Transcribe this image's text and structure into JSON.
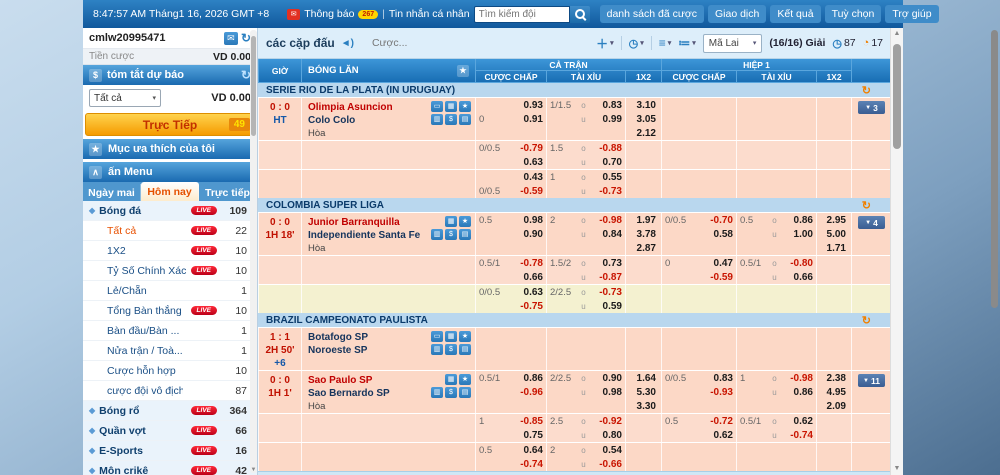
{
  "topbar": {
    "clock": "8:47:57 AM Tháng1 16, 2026 GMT +8",
    "notice_label": "Thông báo",
    "notice_badge": "267",
    "separator": "|",
    "messages_label": "Tin nhắn cá nhân",
    "search_placeholder": "Tìm kiếm đội",
    "nav_buttons": [
      "danh sách đã cược",
      "Giao dịch",
      "Kết quả",
      "Tuỳ chọn",
      "Trợ giúp"
    ]
  },
  "sidebar": {
    "username": "cmlw20995471",
    "stake_label": "Tiền cược",
    "stake_value": "VD 0.00",
    "forecast_title": "tóm tắt dự báo",
    "filter_value": "Tất cả",
    "forecast_value": "VD 0.00",
    "live_button_label": "Trực Tiếp",
    "live_button_count": "49",
    "favorites_label": "Mục ưa thích của tôi",
    "hide_menu_label": "ấn Menu",
    "tabs": [
      {
        "label": "Ngày mai",
        "active": false
      },
      {
        "label": "Hôm nay",
        "active": true
      },
      {
        "label": "Trực tiếp",
        "active": false
      }
    ],
    "items": [
      {
        "label": "Bóng đá",
        "type": "sport",
        "live": true,
        "count": "109"
      },
      {
        "label": "Tất cả",
        "type": "sub",
        "hl": true,
        "live": true,
        "count": "22"
      },
      {
        "label": "1X2",
        "type": "sub",
        "live": true,
        "count": "10"
      },
      {
        "label": "Tỷ Số Chính Xác",
        "type": "sub",
        "live": true,
        "count": "10"
      },
      {
        "label": "Lẻ/Chẵn",
        "type": "sub",
        "live": false,
        "count": "1"
      },
      {
        "label": "Tổng Bàn thắng",
        "type": "sub",
        "live": true,
        "count": "10"
      },
      {
        "label": "Bàn đầu/Bàn ...",
        "type": "sub",
        "live": false,
        "count": "1"
      },
      {
        "label": "Nửa trận / Toà...",
        "type": "sub",
        "live": false,
        "count": "1"
      },
      {
        "label": "Cược hỗn hợp",
        "type": "sub",
        "live": false,
        "count": "10"
      },
      {
        "label": "cược đội vô địch",
        "type": "sub",
        "live": false,
        "count": "87"
      },
      {
        "label": "Bóng rổ",
        "type": "sport",
        "live": true,
        "count": "364"
      },
      {
        "label": "Quần vợt",
        "type": "sport",
        "live": true,
        "count": "66"
      },
      {
        "label": "E-Sports",
        "type": "sport",
        "live": true,
        "count": "16"
      },
      {
        "label": "Môn crikê",
        "type": "sport",
        "live": true,
        "count": "42"
      }
    ]
  },
  "toolbar": {
    "title": "các cặp đấu",
    "bet_label": "Cược...",
    "lang_value": "Mã Lai",
    "league_count": "(16/16) Giải",
    "timer_blue": "87",
    "timer_orange": "17"
  },
  "icon_glyphs": {
    "tv-icon": "▭",
    "stats-icon": "▦",
    "favorite-star-icon": "★",
    "chart-icon": "▥",
    "cashout-icon": "$",
    "score-icon": "▤"
  },
  "colors": {
    "accent_blue": "#1a6ab0",
    "salmon_row": "#fcd8c6",
    "yellow_row": "#f4f1d0",
    "negative_odds": "#c81400",
    "live_red": "#cc0020",
    "orange_button": "#f59b00"
  },
  "table": {
    "col_time": "GIỜ",
    "col_teams": "BÓNG LĂN",
    "group_full": "CẢ TRẬN",
    "group_half": "HIỆP 1",
    "col_hdp": "CƯỢC CHẤP",
    "col_ou": "TÀI XỈU",
    "col_1x2": "1X2",
    "leagues": [
      {
        "name": "SERIE RIO DE LA PLATA (IN URUGUAY)",
        "matches": [
          {
            "time_lines": [
              {
                "text": "0 : 0",
                "color": "red"
              },
              {
                "text": "HT",
                "color": "blue"
              }
            ],
            "teams": [
              {
                "name": "Olimpia Asuncion",
                "color": "red"
              },
              {
                "name": "Colo Colo",
                "color": "dark"
              }
            ],
            "draw_label": "Hòa",
            "icons_top": [
              "tv-icon",
              "stats-icon",
              "favorite-star-icon"
            ],
            "icons_bottom": [
              "chart-icon",
              "cashout-icon",
              "score-icon"
            ],
            "more_count": "3",
            "blocks": [
              {
                "tone": "a",
                "rows": [
                  {
                    "fh": "0.93",
                    "fo_l": "1/1.5",
                    "fo_m": "o",
                    "fo": "0.83",
                    "fx": "3.10"
                  },
                  {
                    "fh_l": "0",
                    "fh": "0.91",
                    "fo_m": "u",
                    "fo": "0.99",
                    "fx": "3.05"
                  },
                  {
                    "fx": "2.12"
                  }
                ]
              },
              {
                "tone": "b",
                "rows": [
                  {
                    "fh_l": "0/0.5",
                    "fh": "-0.79",
                    "fo_l": "1.5",
                    "fo_m": "o",
                    "fo": "-0.88"
                  },
                  {
                    "fh": "0.63",
                    "fo_m": "u",
                    "fo": "0.70"
                  }
                ]
              },
              {
                "tone": "a",
                "rows": [
                  {
                    "fh": "0.43",
                    "fo_l": "1",
                    "fo_m": "o",
                    "fo": "0.55"
                  },
                  {
                    "fh_l": "0/0.5",
                    "fh": "-0.59",
                    "fo_m": "u",
                    "fo": "-0.73"
                  }
                ]
              }
            ]
          }
        ]
      },
      {
        "name": "COLOMBIA SUPER LIGA",
        "matches": [
          {
            "time_lines": [
              {
                "text": "0 : 0",
                "color": "red"
              },
              {
                "text": "1H 18'",
                "color": "red"
              }
            ],
            "teams": [
              {
                "name": "Junior Barranquilla",
                "color": "red"
              },
              {
                "name": "Independiente Santa Fe",
                "color": "dark"
              }
            ],
            "draw_label": "Hòa",
            "icons_top": [
              "stats-icon",
              "favorite-star-icon"
            ],
            "icons_bottom": [
              "chart-icon",
              "cashout-icon",
              "score-icon"
            ],
            "more_count": "4",
            "blocks": [
              {
                "tone": "a",
                "rows": [
                  {
                    "fh_l": "0.5",
                    "fh": "0.98",
                    "fo_l": "2",
                    "fo_m": "o",
                    "fo": "-0.98",
                    "fx": "1.97",
                    "hh_l": "0/0.5",
                    "hh": "-0.70",
                    "ho_l": "0.5",
                    "ho_m": "o",
                    "ho": "0.86",
                    "hx": "2.95"
                  },
                  {
                    "fh": "0.90",
                    "fo_m": "u",
                    "fo": "0.84",
                    "fx": "3.78",
                    "hh": "0.58",
                    "ho_m": "u",
                    "ho": "1.00",
                    "hx": "5.00"
                  },
                  {
                    "fx": "2.87",
                    "hx": "1.71"
                  }
                ]
              },
              {
                "tone": "b",
                "rows": [
                  {
                    "fh_l": "0.5/1",
                    "fh": "-0.78",
                    "fo_l": "1.5/2",
                    "fo_m": "o",
                    "fo": "0.73",
                    "hh_l": "0",
                    "hh": "0.47",
                    "ho_l": "0.5/1",
                    "ho_m": "o",
                    "ho": "-0.80"
                  },
                  {
                    "fh": "0.66",
                    "fo_m": "u",
                    "fo": "-0.87",
                    "hh": "-0.59",
                    "ho_m": "u",
                    "ho": "0.66"
                  }
                ]
              },
              {
                "tone": "y",
                "rows": [
                  {
                    "fh_l": "0/0.5",
                    "fh": "0.63",
                    "fo_l": "2/2.5",
                    "fo_m": "o",
                    "fo": "-0.73"
                  },
                  {
                    "fh": "-0.75",
                    "fo_m": "u",
                    "fo": "0.59"
                  }
                ]
              }
            ]
          }
        ]
      },
      {
        "name": "BRAZIL CAMPEONATO PAULISTA",
        "matches": [
          {
            "time_lines": [
              {
                "text": "1 : 1",
                "color": "red"
              },
              {
                "text": "2H 50'",
                "color": "red"
              },
              {
                "text": "+6",
                "color": "blue"
              }
            ],
            "teams": [
              {
                "name": "Botafogo SP",
                "color": "dark"
              },
              {
                "name": "Noroeste SP",
                "color": "dark"
              }
            ],
            "draw_label": "",
            "icons_top": [
              "tv-icon",
              "stats-icon",
              "favorite-star-icon"
            ],
            "icons_bottom": [
              "chart-icon",
              "cashout-icon",
              "score-icon"
            ],
            "more_count": "",
            "blocks": [
              {
                "tone": "a",
                "rows": [
                  {},
                  {},
                  {}
                ]
              }
            ]
          },
          {
            "time_lines": [
              {
                "text": "0 : 0",
                "color": "red"
              },
              {
                "text": "1H 1'",
                "color": "red"
              }
            ],
            "teams": [
              {
                "name": "Sao Paulo SP",
                "color": "red"
              },
              {
                "name": "Sao Bernardo SP",
                "color": "dark"
              }
            ],
            "draw_label": "Hòa",
            "icons_top": [
              "stats-icon",
              "favorite-star-icon"
            ],
            "icons_bottom": [
              "chart-icon",
              "cashout-icon",
              "score-icon"
            ],
            "more_count": "11",
            "blocks": [
              {
                "tone": "a",
                "rows": [
                  {
                    "fh_l": "0.5/1",
                    "fh": "0.86",
                    "fo_l": "2/2.5",
                    "fo_m": "o",
                    "fo": "0.90",
                    "fx": "1.64",
                    "hh_l": "0/0.5",
                    "hh": "0.83",
                    "ho_l": "1",
                    "ho_m": "o",
                    "ho": "-0.98",
                    "hx": "2.38"
                  },
                  {
                    "fh": "-0.96",
                    "fo_m": "u",
                    "fo": "0.98",
                    "fx": "5.30",
                    "hh": "-0.93",
                    "ho_m": "u",
                    "ho": "0.86",
                    "hx": "4.95"
                  },
                  {
                    "fx": "3.30",
                    "hx": "2.09"
                  }
                ]
              },
              {
                "tone": "b",
                "rows": [
                  {
                    "fh_l": "1",
                    "fh": "-0.85",
                    "fo_l": "2.5",
                    "fo_m": "o",
                    "fo": "-0.92",
                    "hh_l": "0.5",
                    "hh": "-0.72",
                    "ho_l": "0.5/1",
                    "ho_m": "o",
                    "ho": "0.62"
                  },
                  {
                    "fh": "0.75",
                    "fo_m": "u",
                    "fo": "0.80",
                    "hh": "0.62",
                    "ho_m": "u",
                    "ho": "-0.74"
                  }
                ]
              },
              {
                "tone": "a",
                "rows": [
                  {
                    "fh_l": "0.5",
                    "fh": "0.64",
                    "fo_l": "2",
                    "fo_m": "o",
                    "fo": "0.54"
                  },
                  {
                    "fh": "-0.74",
                    "fo_m": "u",
                    "fo": "-0.66"
                  }
                ]
              }
            ]
          }
        ]
      }
    ]
  }
}
